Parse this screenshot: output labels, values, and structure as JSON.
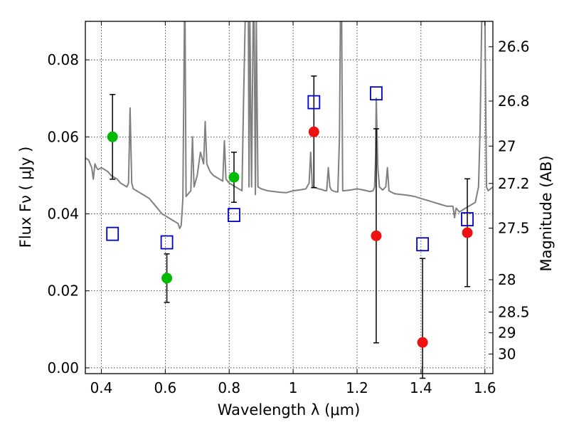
{
  "chart_data": {
    "type": "scatter",
    "xlabel": "Wavelength  λ (μm)",
    "ylabel": "Flux  Fν  ( μJy )",
    "ylabel_right": "Magnitude (AB)",
    "xlim": [
      0.35,
      1.625
    ],
    "ylim": [
      -0.0015,
      0.09
    ],
    "grid": true,
    "x_ticks": [
      0.4,
      0.6,
      0.8,
      1.0,
      1.2,
      1.4,
      1.6
    ],
    "x_tick_labels": [
      "0.4",
      "0.6",
      "0.8",
      "1",
      "1.2",
      "1.4",
      "1.6"
    ],
    "y_ticks": [
      0.0,
      0.02,
      0.04,
      0.06,
      0.08
    ],
    "y_tick_labels": [
      "0.00",
      "0.02",
      "0.04",
      "0.06",
      "0.08"
    ],
    "right_ticks": [
      {
        "label": "26.6",
        "flux": 0.0834
      },
      {
        "label": "26.8",
        "flux": 0.0693
      },
      {
        "label": "27",
        "flux": 0.0576
      },
      {
        "label": "27.2",
        "flux": 0.0479
      },
      {
        "label": "27.5",
        "flux": 0.0363
      },
      {
        "label": "28",
        "flux": 0.0229
      },
      {
        "label": "28.5",
        "flux": 0.0145
      },
      {
        "label": "29",
        "flux": 0.0091
      },
      {
        "label": "30",
        "flux": 0.0036
      }
    ],
    "series": [
      {
        "marker": "circle",
        "color": "#00bb00",
        "x": [
          0.435,
          0.605,
          0.815
        ],
        "y": [
          0.06,
          0.0233,
          0.0495
        ],
        "err_low": [
          0.011,
          0.0063,
          0.0065
        ],
        "err_high": [
          0.011,
          0.0063,
          0.0065
        ]
      },
      {
        "marker": "circle",
        "color": "#ee1111",
        "x": [
          1.065,
          1.26,
          1.405,
          1.545
        ],
        "y": [
          0.0613,
          0.0343,
          0.0066,
          0.0351
        ],
        "err_low": [
          0.0145,
          0.0278,
          0.0093,
          0.014
        ],
        "err_high": [
          0.0145,
          0.0278,
          0.0218,
          0.014
        ]
      },
      {
        "marker": "open-square",
        "color": "#0000cc",
        "x": [
          0.435,
          0.605,
          0.815,
          1.065,
          1.26,
          1.405,
          1.545
        ],
        "y": [
          0.0348,
          0.0326,
          0.0397,
          0.069,
          0.0713,
          0.0321,
          0.0386
        ]
      },
      {
        "type": "line",
        "color": "#808080",
        "x": [
          0.35,
          0.36,
          0.37,
          0.375,
          0.38,
          0.385,
          0.39,
          0.4,
          0.41,
          0.42,
          0.43,
          0.44,
          0.45,
          0.46,
          0.47,
          0.48,
          0.485,
          0.49,
          0.495,
          0.5,
          0.51,
          0.52,
          0.53,
          0.54,
          0.55,
          0.56,
          0.57,
          0.58,
          0.59,
          0.6,
          0.61,
          0.62,
          0.63,
          0.64,
          0.645,
          0.65,
          0.655,
          0.66,
          0.662,
          0.665,
          0.67,
          0.68,
          0.685,
          0.69,
          0.7,
          0.71,
          0.72,
          0.725,
          0.73,
          0.735,
          0.74,
          0.75,
          0.76,
          0.77,
          0.78,
          0.785,
          0.79,
          0.8,
          0.81,
          0.82,
          0.83,
          0.84,
          0.845,
          0.85,
          0.855,
          0.86,
          0.862,
          0.865,
          0.87,
          0.875,
          0.878,
          0.882,
          0.885,
          0.89,
          0.9,
          0.92,
          0.94,
          0.96,
          0.98,
          1.0,
          1.02,
          1.04,
          1.05,
          1.055,
          1.06,
          1.07,
          1.08,
          1.09,
          1.1,
          1.105,
          1.11,
          1.115,
          1.12,
          1.13,
          1.14,
          1.145,
          1.148,
          1.15,
          1.152,
          1.155,
          1.16,
          1.18,
          1.2,
          1.22,
          1.24,
          1.25,
          1.255,
          1.258,
          1.26,
          1.265,
          1.27,
          1.28,
          1.29,
          1.295,
          1.3,
          1.31,
          1.32,
          1.34,
          1.36,
          1.38,
          1.4,
          1.42,
          1.44,
          1.46,
          1.48,
          1.5,
          1.505,
          1.51,
          1.515,
          1.52,
          1.53,
          1.54,
          1.55,
          1.56,
          1.57,
          1.575,
          1.58,
          1.585,
          1.59,
          1.595,
          1.6,
          1.605,
          1.61,
          1.625
        ],
        "y": [
          0.0545,
          0.054,
          0.052,
          0.049,
          0.053,
          0.052,
          0.0515,
          0.052,
          0.0515,
          0.051,
          0.05,
          0.0495,
          0.049,
          0.048,
          0.0475,
          0.047,
          0.048,
          0.0675,
          0.048,
          0.0465,
          0.046,
          0.0455,
          0.045,
          0.0445,
          0.044,
          0.043,
          0.042,
          0.041,
          0.04,
          0.0395,
          0.039,
          0.0385,
          0.038,
          0.0375,
          0.0362,
          0.037,
          0.044,
          0.09,
          0.09,
          0.0445,
          0.045,
          0.046,
          0.06,
          0.047,
          0.05,
          0.056,
          0.053,
          0.064,
          0.053,
          0.052,
          0.051,
          0.05,
          0.0495,
          0.049,
          0.0485,
          0.059,
          0.049,
          0.048,
          0.0475,
          0.047,
          0.0465,
          0.046,
          0.07,
          0.09,
          0.09,
          0.09,
          0.047,
          0.09,
          0.047,
          0.09,
          0.09,
          0.045,
          0.09,
          0.047,
          0.0465,
          0.046,
          0.0458,
          0.0456,
          0.0455,
          0.046,
          0.0462,
          0.0465,
          0.048,
          0.056,
          0.047,
          0.0468,
          0.0465,
          0.0463,
          0.046,
          0.046,
          0.052,
          0.047,
          0.0462,
          0.0458,
          0.0457,
          0.06,
          0.09,
          0.09,
          0.09,
          0.046,
          0.046,
          0.0462,
          0.0465,
          0.0462,
          0.0458,
          0.046,
          0.047,
          0.055,
          0.07,
          0.052,
          0.047,
          0.0462,
          0.047,
          0.052,
          0.046,
          0.0455,
          0.0452,
          0.045,
          0.0448,
          0.0445,
          0.044,
          0.0435,
          0.043,
          0.0425,
          0.042,
          0.042,
          0.039,
          0.0415,
          0.041,
          0.0405,
          0.041,
          0.0415,
          0.042,
          0.0425,
          0.043,
          0.045,
          0.047,
          0.062,
          0.09,
          0.09,
          0.09,
          0.047,
          0.046,
          0.047
        ]
      }
    ]
  }
}
